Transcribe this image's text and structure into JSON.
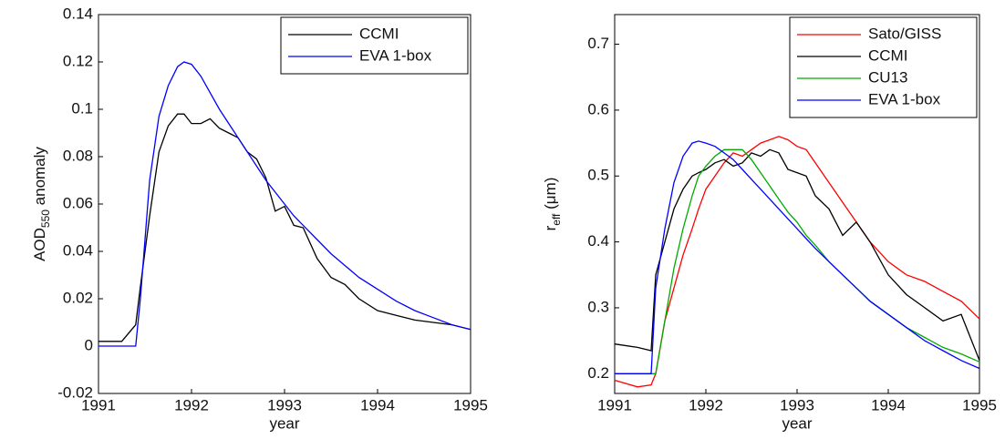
{
  "chart_data": [
    {
      "type": "line",
      "ylabel": {
        "main": "AOD",
        "sub": "550",
        "rest": " anomaly"
      },
      "xlabel": "year",
      "x": [
        1991,
        1991.25,
        1991.4,
        1991.45,
        1991.55,
        1991.65,
        1991.75,
        1991.85,
        1991.92,
        1992,
        1992.1,
        1992.2,
        1992.3,
        1992.4,
        1992.5,
        1992.6,
        1992.7,
        1992.8,
        1992.9,
        1993,
        1993.1,
        1993.2,
        1993.35,
        1993.5,
        1993.65,
        1993.8,
        1994,
        1994.2,
        1994.4,
        1994.6,
        1994.8,
        1995
      ],
      "xlim": [
        1991,
        1995
      ],
      "xticks": [
        1991,
        1992,
        1993,
        1994,
        1995
      ],
      "ylim": [
        -0.02,
        0.14
      ],
      "yticks": [
        -0.02,
        0,
        0.02,
        0.04,
        0.06,
        0.08,
        0.1,
        0.12,
        0.14
      ],
      "legend": "upper-right",
      "series": [
        {
          "name": "CCMI",
          "color": "#000000",
          "values": [
            0.002,
            0.002,
            0.009,
            0.025,
            0.055,
            0.082,
            0.093,
            0.098,
            0.098,
            0.094,
            0.094,
            0.096,
            0.092,
            0.09,
            0.088,
            0.082,
            0.079,
            0.071,
            0.057,
            0.059,
            0.051,
            0.05,
            0.037,
            0.029,
            0.026,
            0.02,
            0.015,
            0.013,
            0.011,
            0.01,
            0.009,
            0.007
          ]
        },
        {
          "name": "EVA 1-box",
          "color": "#0000ff",
          "values": [
            0,
            0,
            0,
            0.02,
            0.07,
            0.097,
            0.11,
            0.118,
            0.12,
            0.119,
            0.114,
            0.107,
            0.1,
            0.094,
            0.088,
            0.082,
            0.076,
            0.07,
            0.065,
            0.06,
            0.055,
            0.051,
            0.045,
            0.039,
            0.034,
            0.029,
            0.024,
            0.019,
            0.015,
            0.012,
            0.009,
            0.007
          ]
        }
      ]
    },
    {
      "type": "line",
      "ylabel": {
        "main": "r",
        "sub": "eff",
        "rest": " (μm)"
      },
      "xlabel": "year",
      "x": [
        1991,
        1991.25,
        1991.4,
        1991.45,
        1991.55,
        1991.65,
        1991.75,
        1991.85,
        1991.92,
        1992,
        1992.1,
        1992.2,
        1992.3,
        1992.4,
        1992.5,
        1992.6,
        1992.7,
        1992.8,
        1992.9,
        1993,
        1993.1,
        1993.2,
        1993.35,
        1993.5,
        1993.65,
        1993.8,
        1994,
        1994.2,
        1994.4,
        1994.6,
        1994.8,
        1995
      ],
      "xlim": [
        1991,
        1995
      ],
      "xticks": [
        1991,
        1992,
        1993,
        1994,
        1995
      ],
      "ylim": [
        0.17,
        0.745
      ],
      "yticks": [
        0.2,
        0.3,
        0.4,
        0.5,
        0.6,
        0.7
      ],
      "legend": "upper-right",
      "series": [
        {
          "name": "Sato/GISS",
          "color": "#ff0000",
          "values": [
            0.19,
            0.18,
            0.183,
            0.2,
            0.28,
            0.33,
            0.38,
            0.42,
            0.45,
            0.48,
            0.5,
            0.52,
            0.535,
            0.53,
            0.54,
            0.55,
            0.555,
            0.56,
            0.555,
            0.545,
            0.54,
            0.52,
            0.49,
            0.46,
            0.43,
            0.4,
            0.37,
            0.35,
            0.34,
            0.325,
            0.31,
            0.283
          ]
        },
        {
          "name": "CCMI",
          "color": "#000000",
          "values": [
            0.245,
            0.24,
            0.235,
            0.35,
            0.4,
            0.45,
            0.48,
            0.5,
            0.505,
            0.51,
            0.52,
            0.525,
            0.515,
            0.52,
            0.535,
            0.53,
            0.54,
            0.535,
            0.51,
            0.505,
            0.5,
            0.47,
            0.45,
            0.41,
            0.43,
            0.4,
            0.35,
            0.32,
            0.3,
            0.28,
            0.29,
            0.22
          ]
        },
        {
          "name": "CU13",
          "color": "#00aa00",
          "values": [
            0.2,
            0.2,
            0.2,
            0.2,
            0.28,
            0.36,
            0.42,
            0.47,
            0.5,
            0.515,
            0.53,
            0.54,
            0.54,
            0.54,
            0.525,
            0.505,
            0.485,
            0.465,
            0.445,
            0.43,
            0.41,
            0.395,
            0.37,
            0.35,
            0.33,
            0.31,
            0.29,
            0.27,
            0.255,
            0.24,
            0.23,
            0.218
          ]
        },
        {
          "name": "EVA 1-box",
          "color": "#0000ff",
          "values": [
            0.2,
            0.2,
            0.2,
            0.33,
            0.42,
            0.49,
            0.53,
            0.55,
            0.553,
            0.55,
            0.545,
            0.535,
            0.525,
            0.51,
            0.495,
            0.48,
            0.465,
            0.45,
            0.435,
            0.42,
            0.405,
            0.39,
            0.37,
            0.35,
            0.33,
            0.31,
            0.29,
            0.27,
            0.25,
            0.235,
            0.22,
            0.208
          ]
        }
      ]
    }
  ]
}
